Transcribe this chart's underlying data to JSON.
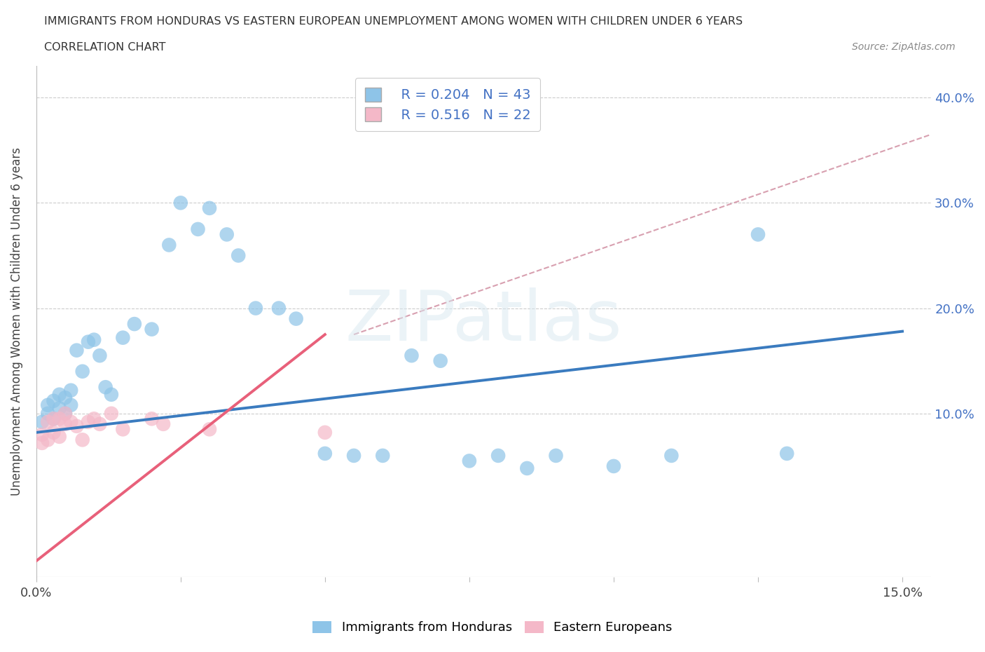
{
  "title": "IMMIGRANTS FROM HONDURAS VS EASTERN EUROPEAN UNEMPLOYMENT AMONG WOMEN WITH CHILDREN UNDER 6 YEARS",
  "subtitle": "CORRELATION CHART",
  "source": "Source: ZipAtlas.com",
  "ylabel": "Unemployment Among Women with Children Under 6 years",
  "xlim": [
    0.0,
    0.155
  ],
  "ylim": [
    -0.055,
    0.43
  ],
  "xtick_positions": [
    0.0,
    0.025,
    0.05,
    0.075,
    0.1,
    0.125,
    0.15
  ],
  "xtick_labels": [
    "0.0%",
    "",
    "",
    "",
    "",
    "",
    "15.0%"
  ],
  "ytick_positions": [
    0.1,
    0.2,
    0.3,
    0.4
  ],
  "ytick_labels": [
    "10.0%",
    "20.0%",
    "30.0%",
    "40.0%"
  ],
  "legend_r1": "R = 0.204",
  "legend_n1": "N = 43",
  "legend_r2": "R = 0.516",
  "legend_n2": "N = 22",
  "color_blue": "#8ec4e8",
  "color_pink": "#f4b8c8",
  "color_blue_line": "#3a7bbf",
  "color_pink_line": "#e8607a",
  "color_dash": "#d8a0b0",
  "watermark_text": "ZIPatlas",
  "blue_x": [
    0.001,
    0.002,
    0.002,
    0.003,
    0.003,
    0.004,
    0.004,
    0.005,
    0.005,
    0.006,
    0.006,
    0.007,
    0.008,
    0.009,
    0.01,
    0.011,
    0.012,
    0.013,
    0.015,
    0.017,
    0.02,
    0.023,
    0.025,
    0.028,
    0.03,
    0.033,
    0.035,
    0.038,
    0.042,
    0.045,
    0.05,
    0.055,
    0.06,
    0.065,
    0.07,
    0.075,
    0.08,
    0.085,
    0.09,
    0.1,
    0.11,
    0.125,
    0.13
  ],
  "blue_y": [
    0.092,
    0.1,
    0.108,
    0.095,
    0.112,
    0.105,
    0.118,
    0.1,
    0.115,
    0.108,
    0.122,
    0.16,
    0.14,
    0.168,
    0.17,
    0.155,
    0.125,
    0.118,
    0.172,
    0.185,
    0.18,
    0.26,
    0.3,
    0.275,
    0.295,
    0.27,
    0.25,
    0.2,
    0.2,
    0.19,
    0.062,
    0.06,
    0.06,
    0.155,
    0.15,
    0.055,
    0.06,
    0.048,
    0.06,
    0.05,
    0.06,
    0.27,
    0.062
  ],
  "pink_x": [
    0.001,
    0.001,
    0.002,
    0.002,
    0.003,
    0.003,
    0.004,
    0.004,
    0.005,
    0.005,
    0.006,
    0.007,
    0.008,
    0.009,
    0.01,
    0.011,
    0.013,
    0.015,
    0.02,
    0.022,
    0.03,
    0.05
  ],
  "pink_y": [
    0.072,
    0.08,
    0.075,
    0.092,
    0.082,
    0.095,
    0.078,
    0.095,
    0.09,
    0.1,
    0.092,
    0.088,
    0.075,
    0.092,
    0.095,
    0.09,
    0.1,
    0.085,
    0.095,
    0.09,
    0.085,
    0.082
  ],
  "blue_line_x0": 0.0,
  "blue_line_y0": 0.082,
  "blue_line_x1": 0.15,
  "blue_line_y1": 0.178,
  "pink_line_x0": 0.0,
  "pink_line_y0": -0.04,
  "pink_line_x1": 0.05,
  "pink_line_y1": 0.175,
  "dash_line_x0": 0.055,
  "dash_line_y0": 0.175,
  "dash_line_x1": 0.155,
  "dash_line_y1": 0.365
}
